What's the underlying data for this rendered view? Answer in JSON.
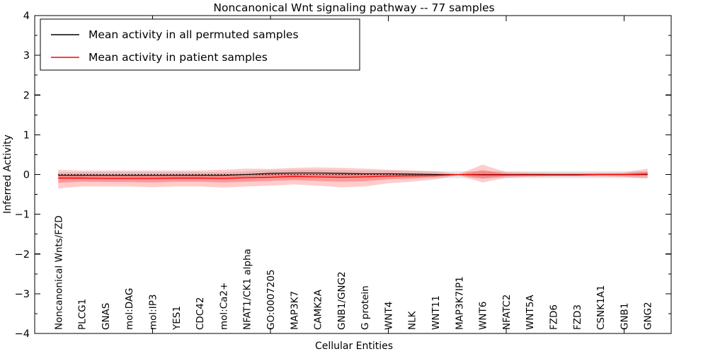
{
  "title": "Noncanonical Wnt signaling pathway -- 77 samples",
  "legend": {
    "items": [
      {
        "label": "Mean activity in all permuted samples",
        "color": "#000000"
      },
      {
        "label": "Mean activity in patient samples",
        "color": "#ff0000"
      }
    ]
  },
  "chart_data": {
    "type": "line",
    "title": "Noncanonical Wnt signaling pathway -- 77 samples",
    "xlabel": "Cellular Entities",
    "ylabel": "Inferred Activity",
    "ylim": [
      -4,
      4
    ],
    "xlim": [
      0,
      27
    ],
    "grid": false,
    "legend_position": "upper left",
    "ytick_values": [
      4,
      3,
      2,
      1,
      0,
      -1,
      -2,
      -3,
      -4
    ],
    "ytick_labels": [
      "4",
      "3",
      "2",
      "1",
      "0",
      "−1",
      "−2",
      "−3",
      "−4"
    ],
    "ytick_minor_values": [
      3.5,
      2.5,
      1.5,
      0.5,
      -0.5,
      -1.5,
      -2.5,
      -3.5
    ],
    "xtick_values": [
      5,
      10,
      15,
      20,
      25
    ],
    "categories": [
      "Noncanonical Wnts/FZD",
      "PLCG1",
      "GNAS",
      "mol:DAG",
      "mol:IP3",
      "YES1",
      "CDC42",
      "mol:Ca2+",
      "NFAT1/CK1 alpha",
      "GO:0007205",
      "MAP3K7",
      "CAMK2A",
      "GNB1/GNG2",
      "G protein",
      "WNT4",
      "NLK",
      "WNT11",
      "MAP3K7IP1",
      "WNT6",
      "NFATC2",
      "WNT5A",
      "FZD6",
      "FZD3",
      "CSNK1A1",
      "GNB1",
      "GNG2"
    ],
    "series": [
      {
        "name": "Mean activity in all permuted samples",
        "color": "#000000",
        "width": 1.1,
        "values": [
          -0.02,
          -0.02,
          -0.02,
          -0.02,
          -0.02,
          -0.02,
          -0.02,
          -0.02,
          0.0,
          0.03,
          0.04,
          0.04,
          0.03,
          0.02,
          0.02,
          0.01,
          0.0,
          0.0,
          0.0,
          0.0,
          0.0,
          0.0,
          0.0,
          0.0,
          0.0,
          0.0
        ]
      },
      {
        "name": "Mean activity in patient samples",
        "color": "#ff0000",
        "width": 1.3,
        "values": [
          -0.09,
          -0.09,
          -0.1,
          -0.1,
          -0.1,
          -0.09,
          -0.09,
          -0.1,
          -0.08,
          -0.07,
          -0.05,
          -0.06,
          -0.07,
          -0.06,
          -0.04,
          -0.03,
          -0.02,
          0.0,
          -0.01,
          -0.01,
          -0.01,
          -0.01,
          -0.01,
          0.0,
          0.0,
          0.01
        ]
      }
    ],
    "bands": [
      {
        "name": "permuted-samples-std-band",
        "color": "rgba(0,0,0,0.10)",
        "upper": [
          0.06,
          0.06,
          0.06,
          0.06,
          0.06,
          0.06,
          0.06,
          0.06,
          0.08,
          0.11,
          0.12,
          0.12,
          0.11,
          0.1,
          0.1,
          0.09,
          0.08,
          0.08,
          0.08,
          0.08,
          0.08,
          0.08,
          0.08,
          0.08,
          0.08,
          0.08
        ],
        "lower": [
          -0.11,
          -0.11,
          -0.11,
          -0.11,
          -0.11,
          -0.11,
          -0.11,
          -0.11,
          -0.09,
          -0.06,
          -0.05,
          -0.05,
          -0.06,
          -0.07,
          -0.07,
          -0.08,
          -0.09,
          -0.09,
          -0.09,
          -0.09,
          -0.09,
          -0.09,
          -0.09,
          -0.09,
          -0.09,
          -0.09
        ]
      },
      {
        "name": "patient-samples-outer-band",
        "color": "rgba(255,0,0,0.20)",
        "upper": [
          0.12,
          0.1,
          0.1,
          0.1,
          0.1,
          0.1,
          0.1,
          0.12,
          0.15,
          0.14,
          0.17,
          0.18,
          0.17,
          0.15,
          0.12,
          0.1,
          0.08,
          0.01,
          0.25,
          0.06,
          0.05,
          0.04,
          0.04,
          0.04,
          0.05,
          0.15
        ],
        "lower": [
          -0.35,
          -0.3,
          -0.3,
          -0.3,
          -0.32,
          -0.3,
          -0.3,
          -0.33,
          -0.3,
          -0.28,
          -0.25,
          -0.28,
          -0.32,
          -0.3,
          -0.22,
          -0.18,
          -0.12,
          -0.02,
          -0.2,
          -0.08,
          -0.06,
          -0.05,
          -0.05,
          -0.05,
          -0.06,
          -0.1
        ]
      },
      {
        "name": "patient-samples-inner-band",
        "color": "rgba(255,0,0,0.25)",
        "upper": [
          0.0,
          0.0,
          -0.01,
          -0.01,
          -0.01,
          0.0,
          0.0,
          0.0,
          0.02,
          0.02,
          0.05,
          0.05,
          0.04,
          0.03,
          0.03,
          0.03,
          0.02,
          0.0,
          0.11,
          0.02,
          0.02,
          0.01,
          0.01,
          0.02,
          0.02,
          0.07
        ],
        "lower": [
          -0.21,
          -0.18,
          -0.19,
          -0.19,
          -0.2,
          -0.18,
          -0.18,
          -0.2,
          -0.18,
          -0.16,
          -0.14,
          -0.16,
          -0.18,
          -0.17,
          -0.12,
          -0.1,
          -0.06,
          -0.01,
          -0.1,
          -0.04,
          -0.03,
          -0.03,
          -0.03,
          -0.02,
          -0.03,
          -0.04
        ]
      }
    ],
    "zero_line": {
      "value": 0,
      "style": "dotted",
      "color": "#000000"
    }
  }
}
